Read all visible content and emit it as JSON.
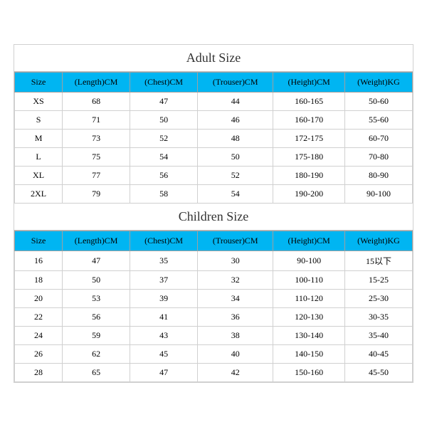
{
  "adult": {
    "title": "Adult Size",
    "columns": [
      "Size",
      "(Length)CM",
      "(Chest)CM",
      "(Trouser)CM",
      "(Height)CM",
      "(Weight)KG"
    ],
    "rows": [
      [
        "XS",
        "68",
        "47",
        "44",
        "160-165",
        "50-60"
      ],
      [
        "S",
        "71",
        "50",
        "46",
        "160-170",
        "55-60"
      ],
      [
        "M",
        "73",
        "52",
        "48",
        "172-175",
        "60-70"
      ],
      [
        "L",
        "75",
        "54",
        "50",
        "175-180",
        "70-80"
      ],
      [
        "XL",
        "77",
        "56",
        "52",
        "180-190",
        "80-90"
      ],
      [
        "2XL",
        "79",
        "58",
        "54",
        "190-200",
        "90-100"
      ]
    ]
  },
  "children": {
    "title": "Children Size",
    "columns": [
      "Size",
      "(Length)CM",
      "(Chest)CM",
      "(Trouser)CM",
      "(Height)CM",
      "(Weight)KG"
    ],
    "rows": [
      [
        "16",
        "47",
        "35",
        "30",
        "90-100",
        "15以下"
      ],
      [
        "18",
        "50",
        "37",
        "32",
        "100-110",
        "15-25"
      ],
      [
        "20",
        "53",
        "39",
        "34",
        "110-120",
        "25-30"
      ],
      [
        "22",
        "56",
        "41",
        "36",
        "120-130",
        "30-35"
      ],
      [
        "24",
        "59",
        "43",
        "38",
        "130-140",
        "35-40"
      ],
      [
        "26",
        "62",
        "45",
        "40",
        "140-150",
        "40-45"
      ],
      [
        "28",
        "65",
        "47",
        "42",
        "150-160",
        "45-50"
      ]
    ]
  },
  "style": {
    "header_bg": "#00b5f2",
    "border_color": "#c0c0c0",
    "cell_border_color": "#d0d0d0",
    "title_fontsize": 18,
    "header_fontsize": 12,
    "cell_fontsize": 12,
    "font_family": "Times New Roman"
  }
}
